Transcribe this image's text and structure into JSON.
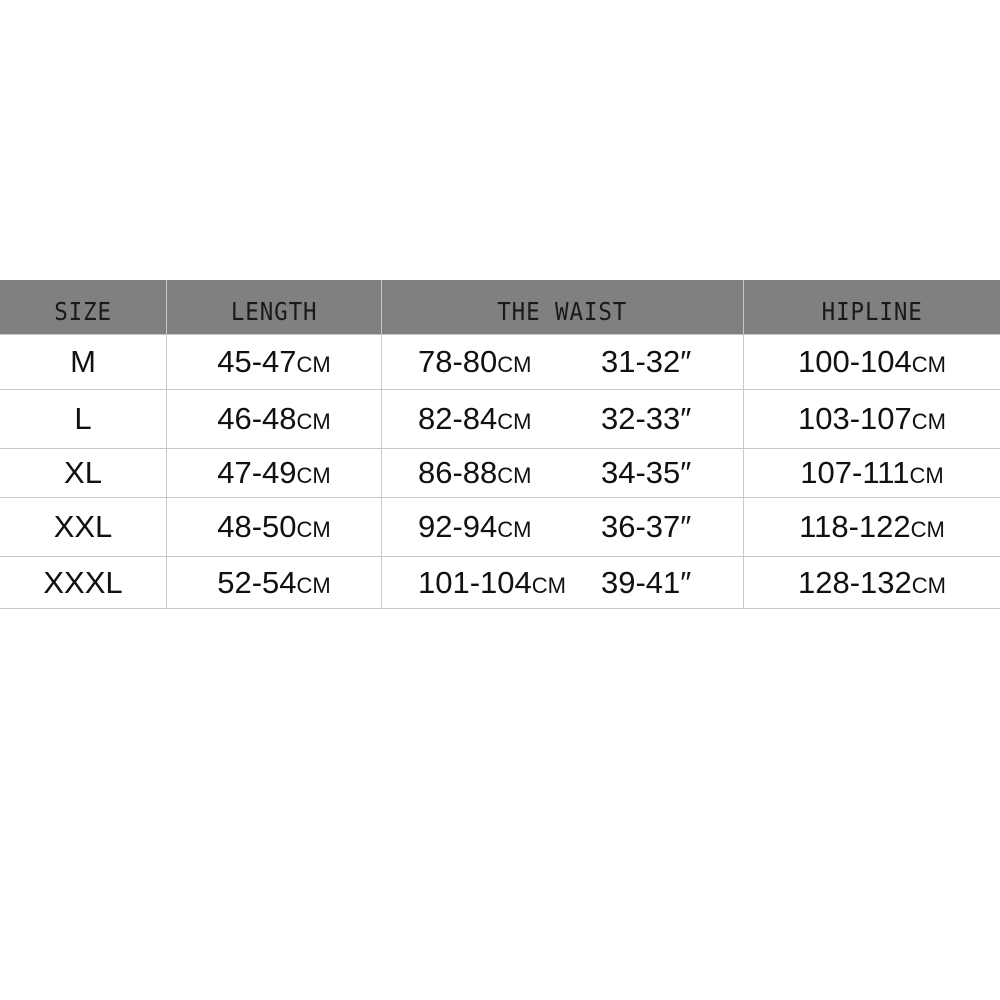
{
  "headers": [
    "SIZE",
    "LENGTH",
    "THE WAIST",
    "HIPLINE"
  ],
  "unit_cm": "CM",
  "unit_inch": "″",
  "colors": {
    "header_bg": "#808080",
    "grid": "#c8c8c8",
    "text": "#111111"
  },
  "rows": [
    {
      "size": "M",
      "length": "45-47",
      "waist_cm": "78-80",
      "waist_in": "31-32",
      "hipline": "100-104"
    },
    {
      "size": "L",
      "length": "46-48",
      "waist_cm": "82-84",
      "waist_in": "32-33",
      "hipline": "103-107"
    },
    {
      "size": "XL",
      "length": "47-49",
      "waist_cm": "86-88",
      "waist_in": "34-35",
      "hipline": "107-111"
    },
    {
      "size": "XXL",
      "length": "48-50",
      "waist_cm": "92-94",
      "waist_in": "36-37",
      "hipline": "118-122"
    },
    {
      "size": "XXXL",
      "length": "52-54",
      "waist_cm": "101-104",
      "waist_in": "39-41",
      "hipline": "128-132"
    }
  ]
}
